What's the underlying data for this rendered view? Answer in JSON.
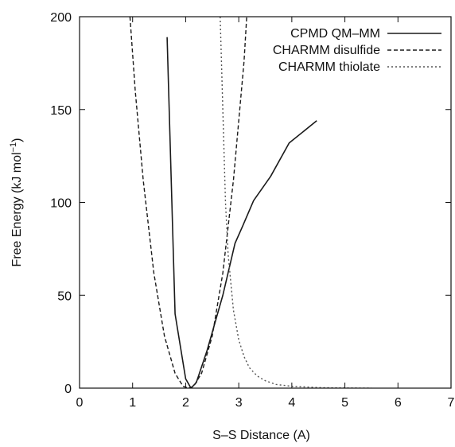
{
  "chart_data": {
    "type": "line",
    "xlabel": "S–S Distance (A)",
    "ylabel": "Free Energy (kJ mol",
    "ylabel_sup": "−1",
    "ylabel_close": ")",
    "xlim": [
      0,
      7
    ],
    "ylim": [
      0,
      200
    ],
    "x_ticks": [
      0,
      1,
      2,
      3,
      4,
      5,
      6,
      7
    ],
    "y_ticks": [
      0,
      50,
      100,
      150,
      200
    ],
    "grid": false,
    "legend_position": "top-right",
    "series": [
      {
        "name": "CPMD QM–MM",
        "style": "solid",
        "color": "#1a1a1a",
        "x": [
          1.65,
          1.8,
          2.0,
          2.1,
          2.2,
          2.4,
          2.7,
          2.93,
          3.07,
          3.28,
          3.6,
          3.95,
          4.47
        ],
        "y": [
          189,
          40,
          5,
          0,
          3,
          20,
          50,
          78,
          87,
          101,
          114,
          132,
          144
        ]
      },
      {
        "name": "CHARMM disulfide",
        "style": "dashed",
        "color": "#1a1a1a",
        "x": [
          0.95,
          1.05,
          1.2,
          1.4,
          1.6,
          1.8,
          1.95,
          2.05,
          2.15,
          2.3,
          2.5,
          2.7,
          2.9,
          3.1,
          3.15
        ],
        "y": [
          200,
          160,
          112,
          62,
          28,
          8,
          1,
          0,
          1,
          8,
          28,
          62,
          112,
          176,
          200
        ]
      },
      {
        "name": "CHARMM thiolate",
        "style": "dotted",
        "color": "#555555",
        "x": [
          2.65,
          2.7,
          2.75,
          2.8,
          2.9,
          3.0,
          3.1,
          3.2,
          3.35,
          3.5,
          3.7,
          4.0,
          4.5,
          5.0,
          5.5
        ],
        "y": [
          200,
          150,
          100,
          72,
          42,
          26,
          17,
          11,
          6.5,
          4,
          2,
          1,
          0.3,
          0.1,
          0
        ]
      }
    ]
  }
}
